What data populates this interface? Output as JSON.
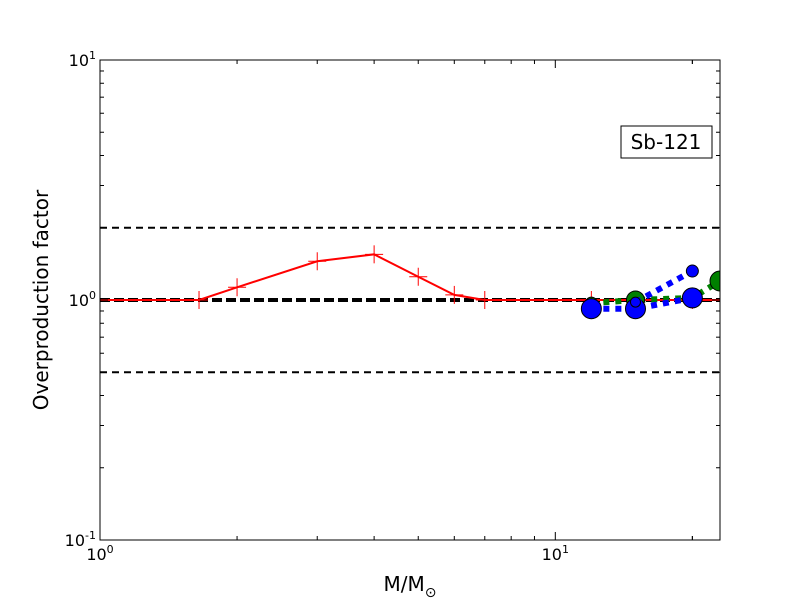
{
  "chart_data": {
    "type": "line",
    "xscale": "log",
    "yscale": "log",
    "xlim": [
      1,
      23
    ],
    "ylim": [
      0.1,
      10
    ],
    "xlabel": "M/M",
    "xlabel_sub": "⊙",
    "ylabel": "Overproduction factor",
    "x_ticks": [
      {
        "value": 1,
        "base": "10",
        "exp": "0"
      },
      {
        "value": 10,
        "base": "10",
        "exp": "1"
      }
    ],
    "y_ticks": [
      {
        "value": 0.1,
        "base": "10",
        "exp": "-1"
      },
      {
        "value": 1,
        "base": "10",
        "exp": "0"
      },
      {
        "value": 10,
        "base": "10",
        "exp": "1"
      }
    ],
    "annotation": "Sb-121",
    "reference_lines": [
      {
        "y": 2.0,
        "style": "dashed",
        "color": "#000000"
      },
      {
        "y": 1.0,
        "style": "dashed-thick",
        "color": "#000000"
      },
      {
        "y": 0.5,
        "style": "dashed",
        "color": "#000000"
      }
    ],
    "series": [
      {
        "color": "#ff0000",
        "style": "solid",
        "marker": "plus",
        "x": [
          1,
          1.65,
          2,
          3,
          4,
          5,
          6,
          7,
          8,
          12,
          15,
          20,
          23
        ],
        "y": [
          1.0,
          1.0,
          1.13,
          1.45,
          1.55,
          1.25,
          1.05,
          1.0,
          1.0,
          1.0,
          1.0,
          1.0,
          1.0
        ],
        "marker_x": [
          1.65,
          2,
          3,
          4,
          5,
          6,
          7,
          12,
          15,
          20,
          23
        ],
        "marker_y": [
          1.0,
          1.13,
          1.45,
          1.55,
          1.25,
          1.05,
          1.0,
          1.0,
          1.0,
          1.0,
          1.0
        ]
      },
      {
        "color": "#008000",
        "style": "dotted",
        "marker": "circle",
        "x": [
          12,
          15,
          20,
          23
        ],
        "y": [
          0.97,
          1.0,
          1.02,
          1.2
        ],
        "marker_size": [
          6,
          9,
          9,
          10
        ]
      },
      {
        "color": "#0000ff",
        "style": "dotted",
        "marker": "circle",
        "x": [
          12,
          15,
          20
        ],
        "y": [
          0.92,
          0.92,
          1.02
        ],
        "marker_size": [
          10,
          10,
          10
        ]
      },
      {
        "color": "#0000ff",
        "style": "dotted",
        "marker": "circle",
        "x": [
          15,
          20
        ],
        "y": [
          0.98,
          1.32
        ],
        "marker_size": [
          5,
          6
        ]
      }
    ]
  }
}
